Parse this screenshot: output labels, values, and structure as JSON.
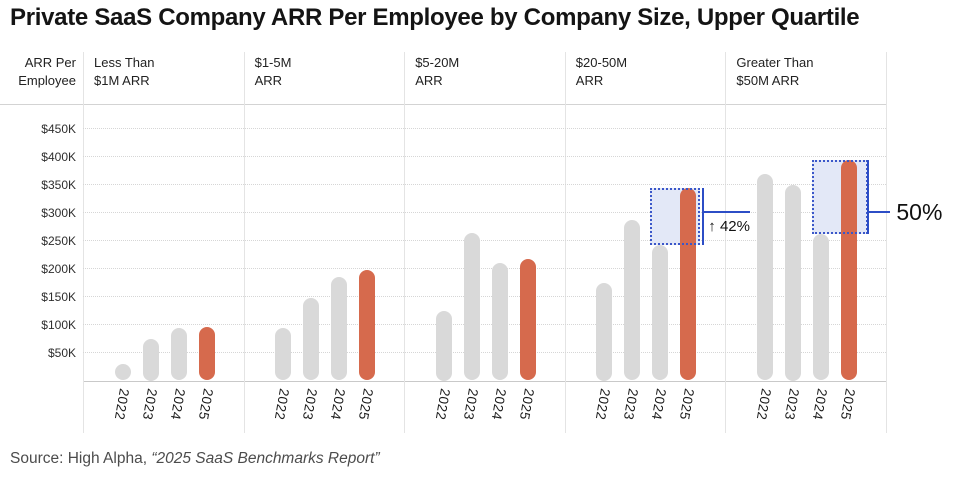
{
  "page": {
    "title": "Private SaaS Company ARR Per Employee by Company Size, Upper Quartile",
    "source_prefix": "Source: High Alpha, ",
    "source_report": "“2025 SaaS Benchmarks Report”"
  },
  "chart_data": {
    "type": "bar",
    "title": "Private SaaS Company ARR Per Employee by Company Size, Upper Quartile",
    "ylabel_line1": "ARR Per",
    "ylabel_line2": "Employee",
    "values_unit": "USD thousands per employee",
    "ylim": [
      0,
      490
    ],
    "grid": "dotted horizontal gridlines",
    "legend_position": "none",
    "y_ticks": [
      {
        "label": "$450K",
        "value": 450
      },
      {
        "label": "$400K",
        "value": 400
      },
      {
        "label": "$350K",
        "value": 350
      },
      {
        "label": "$300K",
        "value": 300
      },
      {
        "label": "$250K",
        "value": 250
      },
      {
        "label": "$200K",
        "value": 200
      },
      {
        "label": "$150K",
        "value": 150
      },
      {
        "label": "$100K",
        "value": 100
      },
      {
        "label": "$50K",
        "value": 50
      }
    ],
    "categories": [
      "2022",
      "2023",
      "2024",
      "2025"
    ],
    "highlight_category": "2025",
    "groups": [
      {
        "label_line1": "Less Than",
        "label_line2": "$1M ARR",
        "values": [
          30,
          75,
          95,
          97
        ]
      },
      {
        "label_line1": "$1-5M",
        "label_line2": "ARR",
        "values": [
          95,
          148,
          185,
          198
        ]
      },
      {
        "label_line1": "$5-20M",
        "label_line2": "ARR",
        "values": [
          125,
          265,
          210,
          218
        ]
      },
      {
        "label_line1": "$20-50M",
        "label_line2": "ARR",
        "values": [
          175,
          288,
          243,
          345
        ]
      },
      {
        "label_line1": "Greater Than",
        "label_line2": "$50M ARR",
        "values": [
          370,
          350,
          263,
          395
        ]
      }
    ],
    "annotations": [
      {
        "group_index": 3,
        "from_category": "2024",
        "to_category": "2025",
        "label": "↑ 42%",
        "size": "small"
      },
      {
        "group_index": 4,
        "from_category": "2024",
        "to_category": "2025",
        "label": "50%",
        "size": "large"
      }
    ],
    "colors": {
      "bar_default": "#d9d9d9",
      "bar_highlight": "#d66a4d",
      "annotation_line": "#2c4dc6",
      "annotation_border": "#3b57c9",
      "annotation_fill": "#e3e8f7"
    }
  }
}
